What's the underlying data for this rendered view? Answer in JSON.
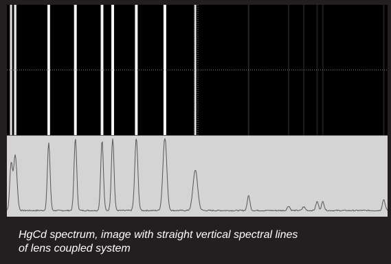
{
  "figure": {
    "caption_line1": "HgCd spectrum, image with straight vertical spectral lines",
    "caption_line2": "of lens coupled system"
  },
  "colors": {
    "frame": "#231f20",
    "detector_background": "#000000",
    "profile_background": "#d4d4d4",
    "profile_trace": "#555555",
    "caption_text": "#ffffff"
  },
  "chart_data": {
    "type": "line",
    "title": "",
    "xlabel": "",
    "ylabel": "",
    "grid": false,
    "legend": "none",
    "xlim": [
      0,
      100
    ],
    "ylim": [
      0,
      100
    ],
    "peaks": [
      {
        "x": 1.1,
        "y": 62,
        "w": 0.35
      },
      {
        "x": 2.2,
        "y": 75,
        "w": 0.45
      },
      {
        "x": 11.0,
        "y": 92,
        "w": 0.35
      },
      {
        "x": 18.0,
        "y": 98,
        "w": 0.35
      },
      {
        "x": 25.0,
        "y": 95,
        "w": 0.35
      },
      {
        "x": 27.8,
        "y": 98,
        "w": 0.35
      },
      {
        "x": 34.0,
        "y": 98,
        "w": 0.4
      },
      {
        "x": 41.5,
        "y": 100,
        "w": 0.5
      },
      {
        "x": 49.5,
        "y": 55,
        "w": 0.6
      },
      {
        "x": 63.5,
        "y": 20,
        "w": 0.35
      },
      {
        "x": 74.0,
        "y": 6,
        "w": 0.35
      },
      {
        "x": 78.0,
        "y": 5,
        "w": 0.35
      },
      {
        "x": 81.5,
        "y": 12,
        "w": 0.35
      },
      {
        "x": 83.0,
        "y": 12,
        "w": 0.35
      },
      {
        "x": 99.0,
        "y": 15,
        "w": 0.35
      }
    ]
  }
}
